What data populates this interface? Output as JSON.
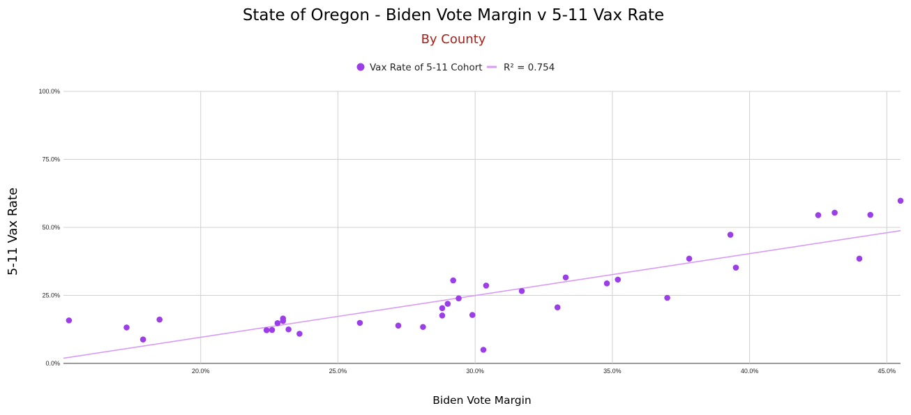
{
  "chart_data": {
    "type": "scatter",
    "title": "State of Oregon - Biden Vote Margin v 5-11 Vax Rate",
    "subtitle": "By County",
    "xlabel": "Biden Vote Margin",
    "ylabel": "5-11 Vax Rate",
    "xlim": [
      0.15,
      0.455
    ],
    "ylim": [
      0,
      1.0
    ],
    "x_ticks": [
      {
        "value": 0.2,
        "label": "20.0%"
      },
      {
        "value": 0.25,
        "label": "25.0%"
      },
      {
        "value": 0.3,
        "label": "30.0%"
      },
      {
        "value": 0.35,
        "label": "35.0%"
      },
      {
        "value": 0.4,
        "label": "40.0%"
      },
      {
        "value": 0.45,
        "label": "45.0%"
      }
    ],
    "y_ticks": [
      {
        "value": 0.0,
        "label": "0.0%"
      },
      {
        "value": 0.25,
        "label": "25.0%"
      },
      {
        "value": 0.5,
        "label": "50.0%"
      },
      {
        "value": 0.75,
        "label": "75.0%"
      },
      {
        "value": 1.0,
        "label": "100.0%"
      }
    ],
    "grid": true,
    "legend_position": "top",
    "series": [
      {
        "name": "Vax Rate of 5-11 Cohort",
        "color": "#9b3ee8",
        "points": [
          {
            "x": 0.152,
            "y": 0.158
          },
          {
            "x": 0.173,
            "y": 0.132
          },
          {
            "x": 0.179,
            "y": 0.088
          },
          {
            "x": 0.185,
            "y": 0.161
          },
          {
            "x": 0.224,
            "y": 0.122
          },
          {
            "x": 0.226,
            "y": 0.123
          },
          {
            "x": 0.228,
            "y": 0.148
          },
          {
            "x": 0.23,
            "y": 0.165
          },
          {
            "x": 0.23,
            "y": 0.156
          },
          {
            "x": 0.232,
            "y": 0.125
          },
          {
            "x": 0.236,
            "y": 0.109
          },
          {
            "x": 0.258,
            "y": 0.149
          },
          {
            "x": 0.272,
            "y": 0.139
          },
          {
            "x": 0.281,
            "y": 0.134
          },
          {
            "x": 0.288,
            "y": 0.176
          },
          {
            "x": 0.288,
            "y": 0.203
          },
          {
            "x": 0.29,
            "y": 0.219
          },
          {
            "x": 0.292,
            "y": 0.305
          },
          {
            "x": 0.294,
            "y": 0.239
          },
          {
            "x": 0.299,
            "y": 0.178
          },
          {
            "x": 0.303,
            "y": 0.05
          },
          {
            "x": 0.304,
            "y": 0.286
          },
          {
            "x": 0.317,
            "y": 0.266
          },
          {
            "x": 0.33,
            "y": 0.206
          },
          {
            "x": 0.333,
            "y": 0.316
          },
          {
            "x": 0.348,
            "y": 0.294
          },
          {
            "x": 0.352,
            "y": 0.308
          },
          {
            "x": 0.37,
            "y": 0.241
          },
          {
            "x": 0.378,
            "y": 0.385
          },
          {
            "x": 0.393,
            "y": 0.473
          },
          {
            "x": 0.395,
            "y": 0.352
          },
          {
            "x": 0.425,
            "y": 0.545
          },
          {
            "x": 0.431,
            "y": 0.554
          },
          {
            "x": 0.44,
            "y": 0.385
          },
          {
            "x": 0.444,
            "y": 0.546
          },
          {
            "x": 0.455,
            "y": 0.598
          }
        ]
      }
    ],
    "trendline": {
      "name": "R² = 0.754",
      "color": "#d79af7",
      "start": {
        "x": 0.15,
        "y": 0.019
      },
      "end": {
        "x": 0.455,
        "y": 0.488
      }
    }
  }
}
